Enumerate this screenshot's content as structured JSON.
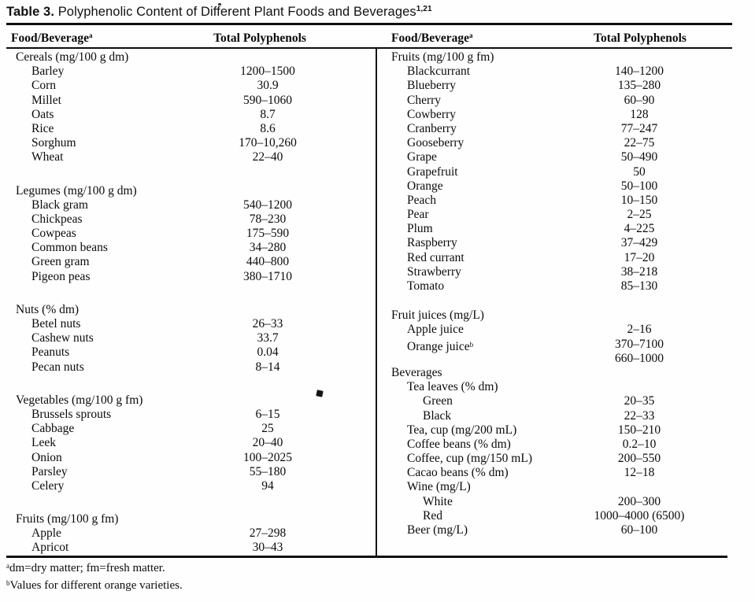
{
  "title": {
    "label": "Table 3.",
    "text": " Polyphenolic Content of Different Plant Foods and Beverages",
    "sup": "1,21"
  },
  "header": {
    "food": "Food/Beverage",
    "food_sup": "a",
    "value": "Total Polyphenols"
  },
  "left_rows": [
    {
      "type": "row",
      "indent": 0,
      "label": "Cereals (mg/100 g dm)"
    },
    {
      "type": "row",
      "indent": 1,
      "label": "Barley",
      "value": "1200–1500"
    },
    {
      "type": "row",
      "indent": 1,
      "label": "Corn",
      "value": "30.9"
    },
    {
      "type": "row",
      "indent": 1,
      "label": "Millet",
      "value": "590–1060"
    },
    {
      "type": "row",
      "indent": 1,
      "label": "Oats",
      "value": "8.7"
    },
    {
      "type": "row",
      "indent": 1,
      "label": "Rice",
      "value": "8.6"
    },
    {
      "type": "row",
      "indent": 1,
      "label": "Sorghum",
      "value": "170–10,260"
    },
    {
      "type": "row",
      "indent": 1,
      "label": "Wheat",
      "value": "22–40"
    },
    {
      "type": "blank"
    },
    {
      "type": "row",
      "indent": 0,
      "label": "Legumes (mg/100 g dm)"
    },
    {
      "type": "row",
      "indent": 1,
      "label": "Black gram",
      "value": "540–1200"
    },
    {
      "type": "row",
      "indent": 1,
      "label": "Chickpeas",
      "value": "78–230"
    },
    {
      "type": "row",
      "indent": 1,
      "label": "Cowpeas",
      "value": "175–590"
    },
    {
      "type": "row",
      "indent": 1,
      "label": "Common beans",
      "value": "34–280"
    },
    {
      "type": "row",
      "indent": 1,
      "label": "Green gram",
      "value": "440–800"
    },
    {
      "type": "row",
      "indent": 1,
      "label": "Pigeon peas",
      "value": "380–1710"
    },
    {
      "type": "blank"
    },
    {
      "type": "row",
      "indent": 0,
      "label": "Nuts (% dm)"
    },
    {
      "type": "row",
      "indent": 1,
      "label": "Betel nuts",
      "value": "26–33"
    },
    {
      "type": "row",
      "indent": 1,
      "label": "Cashew nuts",
      "value": "33.7"
    },
    {
      "type": "row",
      "indent": 1,
      "label": "Peanuts",
      "value": "0.04"
    },
    {
      "type": "row",
      "indent": 1,
      "label": "Pecan nuts",
      "value": "8–14"
    },
    {
      "type": "blank"
    },
    {
      "type": "row",
      "indent": 0,
      "label": "Vegetables (mg/100 g fm)"
    },
    {
      "type": "row",
      "indent": 1,
      "label": "Brussels sprouts",
      "value": "6–15"
    },
    {
      "type": "row",
      "indent": 1,
      "label": "Cabbage",
      "value": "25"
    },
    {
      "type": "row",
      "indent": 1,
      "label": "Leek",
      "value": "20–40"
    },
    {
      "type": "row",
      "indent": 1,
      "label": "Onion",
      "value": "100–2025"
    },
    {
      "type": "row",
      "indent": 1,
      "label": "Parsley",
      "value": "55–180"
    },
    {
      "type": "row",
      "indent": 1,
      "label": "Celery",
      "value": "94"
    },
    {
      "type": "blank"
    },
    {
      "type": "row",
      "indent": 0,
      "label": "Fruits (mg/100 g fm)"
    },
    {
      "type": "row",
      "indent": 1,
      "label": "Apple",
      "value": "27–298"
    },
    {
      "type": "row",
      "indent": 1,
      "label": "Apricot",
      "value": "30–43"
    }
  ],
  "right_rows": [
    {
      "type": "row",
      "indent": 0,
      "label": "Fruits (mg/100 g fm)"
    },
    {
      "type": "row",
      "indent": 1,
      "label": "Blackcurrant",
      "value": "140–1200"
    },
    {
      "type": "row",
      "indent": 1,
      "label": "Blueberry",
      "value": "135–280"
    },
    {
      "type": "row",
      "indent": 1,
      "label": "Cherry",
      "value": "60–90"
    },
    {
      "type": "row",
      "indent": 1,
      "label": "Cowberry",
      "value": "128"
    },
    {
      "type": "row",
      "indent": 1,
      "label": "Cranberry",
      "value": "77–247"
    },
    {
      "type": "row",
      "indent": 1,
      "label": "Gooseberry",
      "value": "22–75"
    },
    {
      "type": "row",
      "indent": 1,
      "label": "Grape",
      "value": "50–490"
    },
    {
      "type": "row",
      "indent": 1,
      "label": "Grapefruit",
      "value": "50"
    },
    {
      "type": "row",
      "indent": 1,
      "label": "Orange",
      "value": "50–100"
    },
    {
      "type": "row",
      "indent": 1,
      "label": "Peach",
      "value": "10–150"
    },
    {
      "type": "row",
      "indent": 1,
      "label": "Pear",
      "value": "2–25"
    },
    {
      "type": "row",
      "indent": 1,
      "label": "Plum",
      "value": "4–225"
    },
    {
      "type": "row",
      "indent": 1,
      "label": "Raspberry",
      "value": "37–429"
    },
    {
      "type": "row",
      "indent": 1,
      "label": "Red currant",
      "value": "17–20"
    },
    {
      "type": "row",
      "indent": 1,
      "label": "Strawberry",
      "value": "38–218"
    },
    {
      "type": "row",
      "indent": 1,
      "label": "Tomato",
      "value": "85–130"
    },
    {
      "type": "blank"
    },
    {
      "type": "row",
      "indent": 0,
      "label": "Fruit juices (mg/L)"
    },
    {
      "type": "row",
      "indent": 1,
      "label": "Apple juice",
      "value": "2–16"
    },
    {
      "type": "row",
      "indent": 1,
      "label": "Orange juice",
      "sup": "b",
      "value": "370–7100"
    },
    {
      "type": "row",
      "indent": 1,
      "label": "",
      "value": "660–1000"
    },
    {
      "type": "row",
      "indent": 0,
      "label": "Beverages"
    },
    {
      "type": "row",
      "indent": 1,
      "label": "Tea leaves (% dm)"
    },
    {
      "type": "row",
      "indent": 2,
      "label": "Green",
      "value": "20–35"
    },
    {
      "type": "row",
      "indent": 2,
      "label": "Black",
      "value": "22–33"
    },
    {
      "type": "row",
      "indent": 1,
      "label": "Tea, cup (mg/200 mL)",
      "value": "150–210"
    },
    {
      "type": "row",
      "indent": 1,
      "label": "Coffee beans (% dm)",
      "value": "0.2–10"
    },
    {
      "type": "row",
      "indent": 1,
      "label": "Coffee, cup (mg/150 mL)",
      "value": "200–550"
    },
    {
      "type": "row",
      "indent": 1,
      "label": "Cacao beans (% dm)",
      "value": "12–18"
    },
    {
      "type": "row",
      "indent": 1,
      "label": "Wine (mg/L)"
    },
    {
      "type": "row",
      "indent": 2,
      "label": "White",
      "value": "200–300"
    },
    {
      "type": "row",
      "indent": 2,
      "label": "Red",
      "value": "1000–4000 (6500)"
    },
    {
      "type": "row",
      "indent": 1,
      "label": "Beer (mg/L)",
      "value": "60–100"
    }
  ],
  "footnotes": [
    {
      "sup": "a",
      "text": "dm=dry matter; fm=fresh matter."
    },
    {
      "sup": "b",
      "text": "Values for different orange varieties."
    }
  ]
}
